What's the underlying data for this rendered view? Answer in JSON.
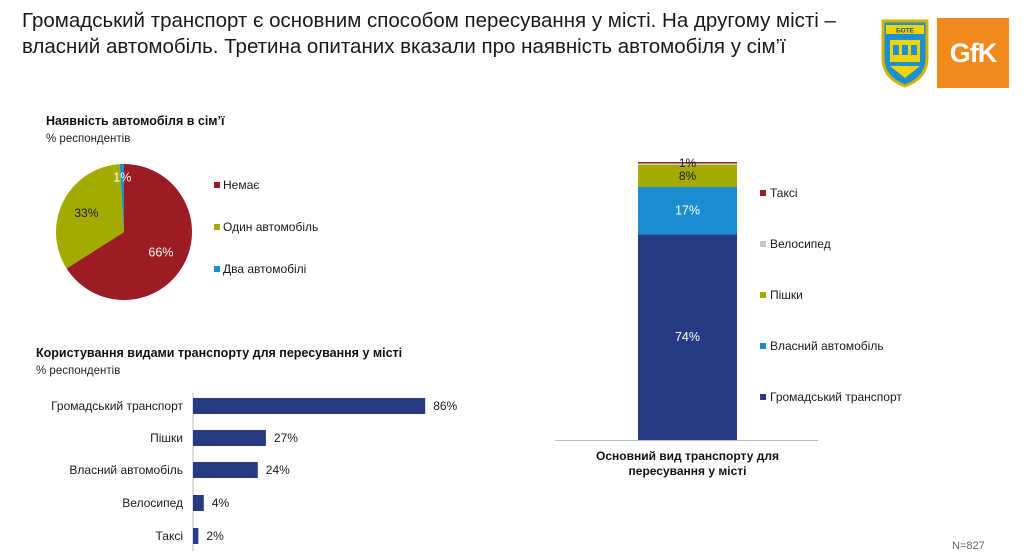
{
  "headline": "Громадський транспорт є основним способом пересування у місті. На другому місті – власний автомобіль. Третина опитаних вказали про наявність автомобіля у сім’ї",
  "logos": {
    "brand_text": "GfK",
    "brand_color": "#f08a1c",
    "coat_text": "БОТЕ"
  },
  "footnote": "N=827",
  "chart_data": [
    {
      "type": "pie",
      "title": "Наявність автомобіля в сім’ї",
      "subtitle": "% респондентів",
      "categories": [
        "Немає",
        "Один автомобіль",
        "Два автомобілі"
      ],
      "values": [
        66,
        33,
        1
      ],
      "labels": [
        "66%",
        "33%",
        "1%"
      ],
      "colors": [
        "#9b1c22",
        "#a4ab00",
        "#1a8ccf"
      ],
      "legend": "right"
    },
    {
      "type": "bar",
      "orientation": "horizontal",
      "title": "Користування видами транспорту для пересування у місті",
      "subtitle": "% респондентів",
      "categories": [
        "Громадський транспорт",
        "Пішки",
        "Власний автомобіль",
        "Велосипед",
        "Таксі"
      ],
      "values": [
        86,
        27,
        24,
        4,
        2
      ],
      "labels": [
        "86%",
        "27%",
        "24%",
        "4%",
        "2%"
      ],
      "color": "#263b84",
      "xlim": [
        0,
        100
      ]
    },
    {
      "type": "bar",
      "stacked": true,
      "title": "Основний вид транспорту для пересування у місті",
      "series": [
        {
          "name": "Громадський транспорт",
          "values": [
            74
          ],
          "label": "74%",
          "color": "#263b84"
        },
        {
          "name": "Власний автомобіль",
          "values": [
            17
          ],
          "label": "17%",
          "color": "#1a8ccf"
        },
        {
          "name": "Пішки",
          "values": [
            8
          ],
          "label": "8%",
          "color": "#a4ab00"
        },
        {
          "name": "Велосипед",
          "values": [
            0.5
          ],
          "label": "",
          "color": "#c8c8c8"
        },
        {
          "name": "Таксі",
          "values": [
            0.5
          ],
          "label": "1%",
          "color": "#9b1c22"
        }
      ],
      "legend_order": [
        "Таксі",
        "Велосипед",
        "Пішки",
        "Власний автомобіль",
        "Громадський транспорт"
      ],
      "legend": "right",
      "ylim": [
        0,
        100
      ]
    }
  ]
}
